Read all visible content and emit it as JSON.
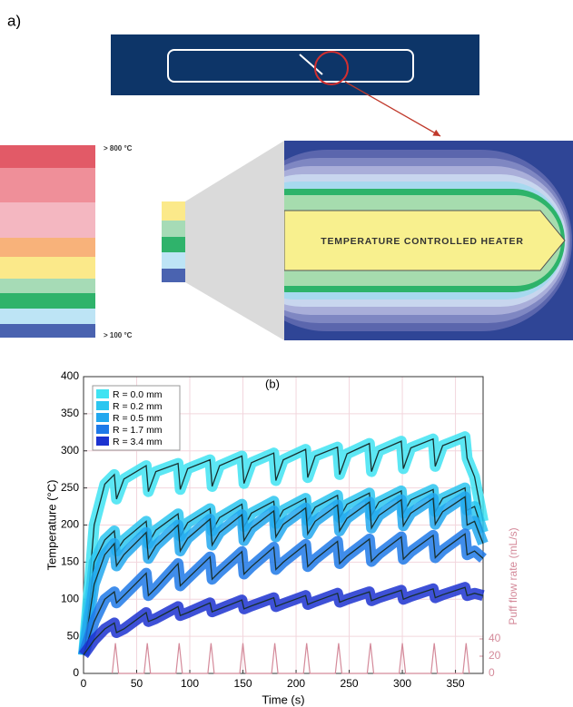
{
  "panel_a": {
    "label": "a)",
    "scale_top": "> 800 °C",
    "scale_bottom": "> 100 °C",
    "heater_label": "TEMPERATURE CONTROLLED HEATER"
  },
  "chart_data": {
    "type": "line",
    "title": "(b)",
    "x_label": "Time (s)",
    "y_label": "Temperature (°C)",
    "y2_label": "Puff flow rate (mL/s)",
    "xlim": [
      0,
      376
    ],
    "ylim": [
      0,
      400
    ],
    "y2lim": [
      0,
      344
    ],
    "xticks": [
      0,
      50,
      100,
      150,
      200,
      250,
      300,
      350
    ],
    "yticks": [
      0,
      50,
      100,
      150,
      200,
      250,
      300,
      350,
      400
    ],
    "y2ticks": [
      0,
      20,
      40
    ],
    "grid": true,
    "grid_color": "#f2d6dd",
    "line_color": "#17302f",
    "legend": "upper left",
    "x": [
      0,
      10,
      20,
      29,
      31,
      38,
      59,
      61,
      68,
      89,
      91,
      98,
      119,
      121,
      128,
      149,
      151,
      158,
      179,
      181,
      188,
      209,
      211,
      218,
      239,
      241,
      248,
      269,
      271,
      278,
      299,
      301,
      308,
      329,
      331,
      338,
      359,
      361,
      368,
      376
    ],
    "series": [
      {
        "name": "R = 0.0 mm",
        "color": "#3fe3f2",
        "values": [
          25,
          200,
          255,
          268,
          235,
          262,
          280,
          245,
          272,
          283,
          248,
          276,
          288,
          252,
          280,
          293,
          256,
          284,
          297,
          260,
          288,
          302,
          264,
          293,
          305,
          268,
          296,
          310,
          272,
          300,
          313,
          276,
          304,
          316,
          279,
          307,
          319,
          290,
          265,
          205
        ]
      },
      {
        "name": "R = 0.2 mm",
        "color": "#2cc6f0",
        "values": [
          25,
          150,
          180,
          192,
          165,
          180,
          205,
          175,
          193,
          215,
          185,
          203,
          222,
          192,
          210,
          228,
          198,
          216,
          232,
          202,
          220,
          236,
          206,
          224,
          240,
          210,
          228,
          243,
          213,
          231,
          246,
          216,
          234,
          248,
          218,
          236,
          250,
          220,
          225,
          190
        ]
      },
      {
        "name": "R = 0.5 mm",
        "color": "#22a8ef",
        "values": [
          25,
          120,
          160,
          175,
          145,
          160,
          190,
          155,
          172,
          200,
          165,
          182,
          208,
          173,
          190,
          214,
          179,
          196,
          219,
          184,
          201,
          223,
          188,
          205,
          227,
          192,
          209,
          231,
          196,
          213,
          234,
          199,
          216,
          236,
          201,
          218,
          238,
          200,
          205,
          175
        ]
      },
      {
        "name": "R = 1.7 mm",
        "color": "#1f79e8",
        "values": [
          25,
          70,
          100,
          110,
          95,
          105,
          135,
          105,
          115,
          148,
          118,
          128,
          157,
          127,
          137,
          164,
          134,
          144,
          170,
          140,
          150,
          174,
          144,
          154,
          178,
          148,
          158,
          181,
          151,
          161,
          184,
          154,
          164,
          186,
          156,
          166,
          188,
          160,
          165,
          155
        ]
      },
      {
        "name": "R = 3.4 mm",
        "color": "#1c33d0",
        "values": [
          25,
          45,
          60,
          68,
          55,
          60,
          82,
          70,
          74,
          90,
          78,
          82,
          95,
          83,
          87,
          99,
          87,
          91,
          102,
          90,
          94,
          105,
          93,
          97,
          108,
          96,
          100,
          110,
          98,
          102,
          112,
          100,
          104,
          114,
          102,
          106,
          116,
          105,
          108,
          105
        ]
      },
      {
        "axis": "y2",
        "color": "#d48a9a",
        "x": [
          27,
          30,
          33,
          57,
          60,
          63,
          87,
          90,
          93,
          117,
          120,
          123,
          147,
          150,
          153,
          177,
          180,
          183,
          207,
          210,
          213,
          237,
          240,
          243,
          267,
          270,
          273,
          297,
          300,
          303,
          327,
          330,
          333,
          357,
          360,
          363
        ],
        "values": [
          0,
          35,
          0,
          0,
          35,
          0,
          0,
          35,
          0,
          0,
          35,
          0,
          0,
          35,
          0,
          0,
          35,
          0,
          0,
          35,
          0,
          0,
          35,
          0,
          0,
          35,
          0,
          0,
          35,
          0,
          0,
          35,
          0,
          0,
          35,
          0
        ]
      }
    ]
  }
}
